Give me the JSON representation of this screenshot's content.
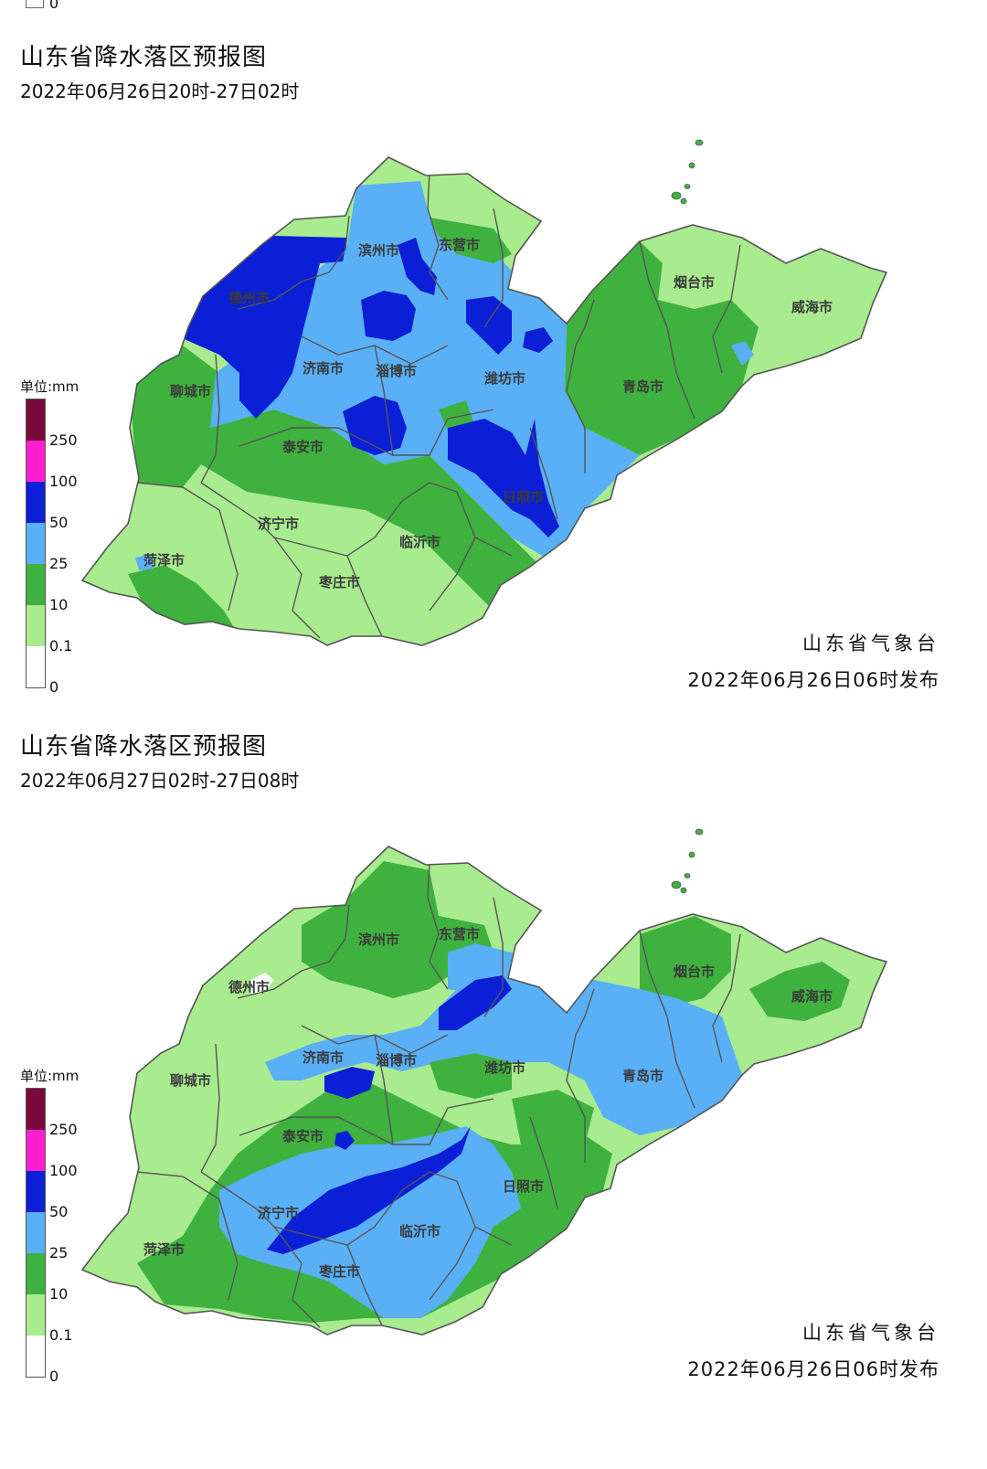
{
  "top_fragment_zero": "0",
  "panels": [
    {
      "title": "山东省降水落区预报图",
      "subtitle": "2022年06月26日20时-27日02时",
      "org": "山东省气象台",
      "issued": "2022年06月26日06时发布"
    },
    {
      "title": "山东省降水落区预报图",
      "subtitle": "2022年06月27日02时-27日08时",
      "org": "山东省气象台",
      "issued": "2022年06月26日06时发布"
    }
  ],
  "legend": {
    "unit": "单位:mm",
    "ticks": [
      "250",
      "100",
      "50",
      "25",
      "10",
      "0.1",
      "0"
    ],
    "colors": [
      "#7a0a3c",
      "#ff1fd0",
      "#0b1fd6",
      "#5ab0f7",
      "#3fb13f",
      "#a9eb8f",
      "#ffffff"
    ]
  },
  "cities": [
    "滨州市",
    "东营市",
    "德州市",
    "烟台市",
    "威海市",
    "济南市",
    "淄博市",
    "潍坊市",
    "聊城市",
    "青岛市",
    "泰安市",
    "日照市",
    "济宁市",
    "临沂市",
    "菏泽市",
    "枣庄市"
  ],
  "colors": {
    "light_green": "#a9eb8f",
    "green": "#3fb13f",
    "light_blue": "#5ab0f7",
    "blue": "#0b1fd6",
    "white": "#ffffff",
    "border": "#555555"
  }
}
